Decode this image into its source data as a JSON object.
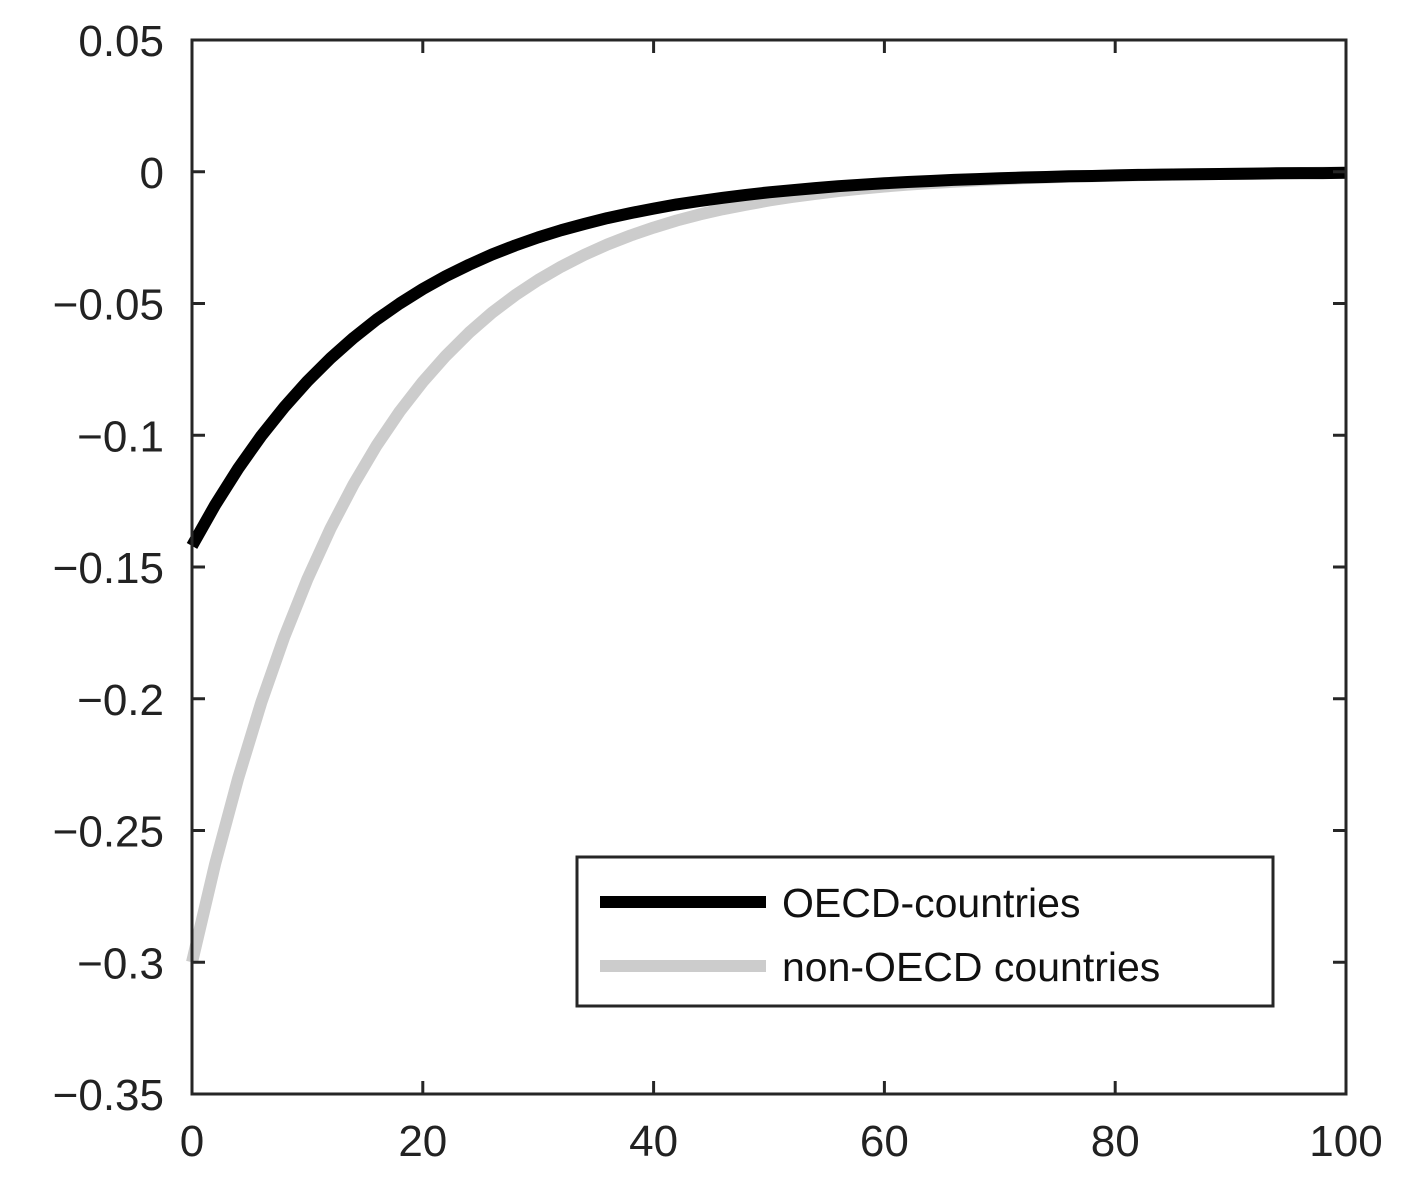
{
  "chart_data": {
    "type": "line",
    "title": "",
    "xlabel": "",
    "ylabel": "",
    "xlim": [
      0,
      100
    ],
    "ylim": [
      -0.35,
      0.05
    ],
    "xticks": [
      0,
      20,
      40,
      60,
      80,
      100
    ],
    "xtick_labels": [
      "0",
      "20",
      "40",
      "60",
      "80",
      "100"
    ],
    "yticks": [
      0.05,
      0,
      -0.05,
      -0.1,
      -0.15,
      -0.2,
      -0.25,
      -0.3,
      -0.35
    ],
    "ytick_labels": [
      "0.05",
      "0",
      "−0.05",
      "−0.1",
      "−0.15",
      "−0.2",
      "−0.25",
      "−0.3",
      "−0.35"
    ],
    "grid": false,
    "legend_position": "bottom-right",
    "x": [
      0,
      2,
      4,
      6,
      8,
      10,
      12,
      14,
      16,
      18,
      20,
      22,
      24,
      26,
      28,
      30,
      32,
      34,
      36,
      38,
      40,
      42,
      44,
      46,
      48,
      50,
      52,
      54,
      56,
      58,
      60,
      62,
      64,
      66,
      68,
      70,
      72,
      74,
      76,
      78,
      80,
      82,
      84,
      86,
      88,
      90,
      92,
      94,
      96,
      98,
      100
    ],
    "series": [
      {
        "name": "OECD-countries",
        "color": "#000000",
        "values": [
          -0.142,
          -0.1265,
          -0.1126,
          -0.1003,
          -0.0893,
          -0.0795,
          -0.0708,
          -0.063,
          -0.0561,
          -0.05,
          -0.0445,
          -0.0396,
          -0.0353,
          -0.0314,
          -0.028,
          -0.0249,
          -0.0222,
          -0.0198,
          -0.0176,
          -0.0157,
          -0.014,
          -0.0124,
          -0.0111,
          -0.0099,
          -0.0088,
          -0.0078,
          -0.007,
          -0.0062,
          -0.0055,
          -0.0049,
          -0.0044,
          -0.0039,
          -0.0035,
          -0.0031,
          -0.0028,
          -0.0025,
          -0.0022,
          -0.002,
          -0.0017,
          -0.0016,
          -0.0014,
          -0.0012,
          -0.0011,
          -0.001,
          -0.0009,
          -0.0008,
          -0.0007,
          -0.0006,
          -0.0005,
          -0.0005,
          -0.0004
        ]
      },
      {
        "name": "non-OECD countries",
        "color": "#cccccc",
        "values": [
          -0.3,
          -0.2627,
          -0.2301,
          -0.2015,
          -0.1765,
          -0.1546,
          -0.1354,
          -0.1186,
          -0.1039,
          -0.091,
          -0.0797,
          -0.0698,
          -0.0611,
          -0.0535,
          -0.0469,
          -0.0411,
          -0.036,
          -0.0315,
          -0.0276,
          -0.0242,
          -0.0212,
          -0.0185,
          -0.0162,
          -0.0142,
          -0.0125,
          -0.0109,
          -0.0096,
          -0.0084,
          -0.0073,
          -0.0064,
          -0.0056,
          -0.0049,
          -0.0043,
          -0.0038,
          -0.0033,
          -0.0029,
          -0.0025,
          -0.0022,
          -0.0019,
          -0.0017,
          -0.0015,
          -0.0013,
          -0.0011,
          -0.001,
          -0.0009,
          -0.0008,
          -0.0007,
          -0.0006,
          -0.0005,
          -0.0004,
          -0.0004
        ]
      }
    ]
  }
}
